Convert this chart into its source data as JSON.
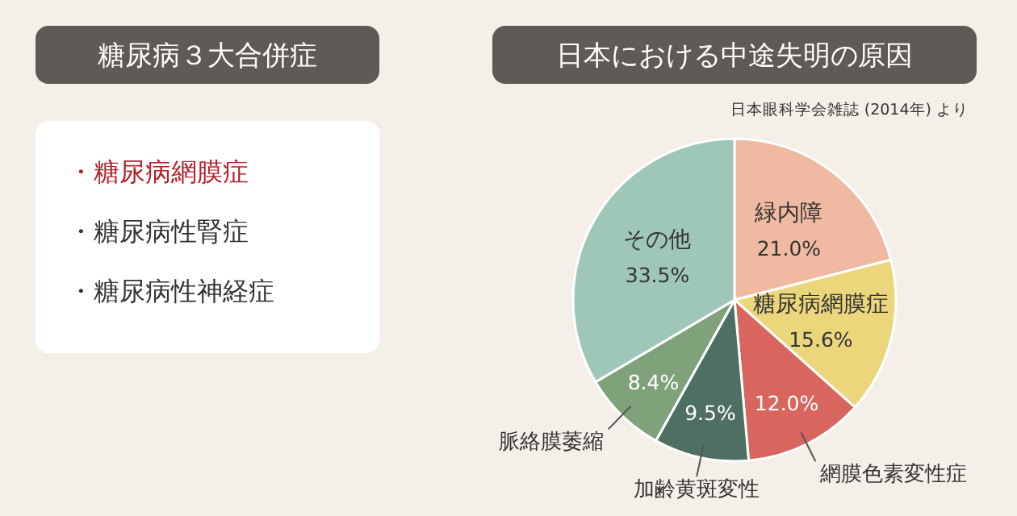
{
  "chart_data": [
    {
      "type": "other",
      "title": "糖尿病３大合併症",
      "annotations": [
        "・糖尿病網膜症",
        "・糖尿病性腎症",
        "・糖尿病性神経症"
      ],
      "colors": [
        "#b3202a",
        "#333333",
        "#333333"
      ]
    },
    {
      "type": "pie",
      "title": "日本における中途失明の原因",
      "annotations": [
        "日本眼科学会雑誌 (2014年) より"
      ],
      "categories": [
        "緑内障",
        "糖尿病網膜症",
        "網膜色素変性症",
        "加齢黄斑変性",
        "脈絡膜萎縮",
        "その他"
      ],
      "values": [
        21.0,
        15.6,
        12.0,
        9.5,
        8.4,
        33.5
      ],
      "colors": [
        "#f0b9a2",
        "#ecd67c",
        "#d8655e",
        "#4f6f63",
        "#80a27b",
        "#9fc7b8"
      ],
      "value_labels": [
        "21.0%",
        "15.6%",
        "12.0%",
        "9.5%",
        "8.4%",
        "33.5%"
      ]
    }
  ]
}
